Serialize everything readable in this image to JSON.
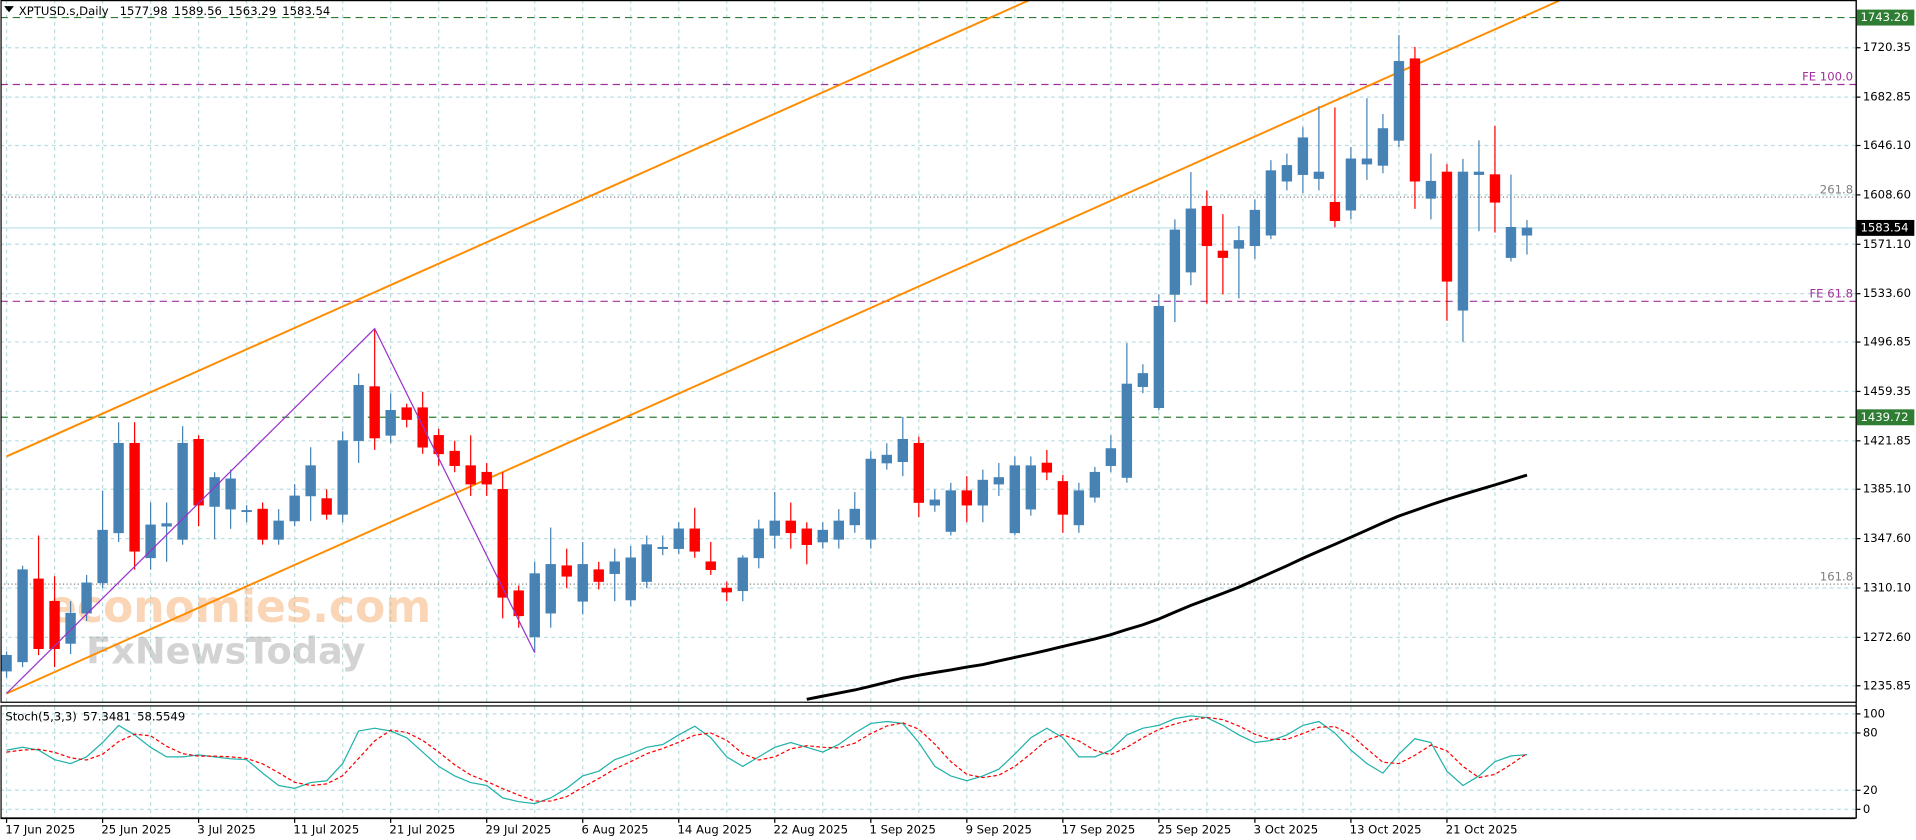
{
  "chart_data": [
    {
      "type": "candlestick",
      "symbol": "XPTUSD.s,Daily",
      "categories": [
        "17 Jun 2025",
        null,
        null,
        null,
        null,
        null,
        "25 Jun 2025",
        null,
        null,
        null,
        null,
        null,
        "3 Jul 2025",
        null,
        null,
        null,
        null,
        null,
        "11 Jul 2025",
        null,
        null,
        null,
        null,
        null,
        "21 Jul 2025",
        null,
        null,
        null,
        null,
        null,
        "29 Jul 2025",
        null,
        null,
        null,
        null,
        null,
        "6 Aug 2025",
        null,
        null,
        null,
        null,
        null,
        "14 Aug 2025",
        null,
        null,
        null,
        null,
        null,
        "22 Aug 2025",
        null,
        null,
        null,
        null,
        null,
        "1 Sep 2025",
        null,
        null,
        null,
        null,
        null,
        "9 Sep 2025",
        null,
        null,
        null,
        null,
        null,
        "17 Sep 2025",
        null,
        null,
        null,
        null,
        null,
        "25 Sep 2025",
        null,
        null,
        null,
        null,
        null,
        "3 Oct 2025",
        null,
        null,
        null,
        null,
        null,
        "13 Oct 2025",
        null,
        null,
        null,
        null,
        null,
        "21 Oct 2025",
        null,
        null,
        null,
        null,
        null
      ],
      "open": [
        1247,
        1254,
        1317,
        1300,
        1268,
        1291,
        1314,
        1352,
        1420,
        1333,
        1357,
        1347,
        1423,
        1372,
        1370,
        1368,
        1370,
        1347,
        1361,
        1380,
        1378,
        1366,
        1422,
        1463,
        1426,
        1447,
        1447,
        1426,
        1414,
        1403,
        1398,
        1385,
        1308,
        1273,
        1291,
        1327,
        1300,
        1324,
        1321,
        1301,
        1315,
        1340,
        1340,
        1355,
        1330,
        1310,
        1308,
        1333,
        1350,
        1361,
        1355,
        1345,
        1347,
        1358,
        1347,
        1405,
        1406,
        1420,
        1373,
        1353,
        1384,
        1373,
        1389,
        1352,
        1370,
        1405,
        1391,
        1358,
        1379,
        1403,
        1394,
        1463,
        1447,
        1533,
        1550,
        1600,
        1566,
        1568,
        1570,
        1578,
        1619,
        1624,
        1621,
        1603,
        1597,
        1632,
        1631,
        1650,
        1712,
        1606,
        1626,
        1521,
        1624,
        1624,
        1561,
        1577.98
      ],
      "high": [
        1262,
        1327,
        1350,
        1319,
        1300,
        1320,
        1384,
        1436,
        1436,
        1375,
        1375,
        1433,
        1426,
        1398,
        1400,
        1373,
        1375,
        1370,
        1389,
        1417,
        1385,
        1429,
        1473,
        1507,
        1458,
        1450,
        1459,
        1431,
        1422,
        1426,
        1405,
        1398,
        1312,
        1330,
        1356,
        1340,
        1345,
        1330,
        1340,
        1342,
        1350,
        1350,
        1360,
        1371,
        1345,
        1315,
        1335,
        1362,
        1383,
        1375,
        1360,
        1360,
        1370,
        1383,
        1414,
        1420,
        1440,
        1425,
        1385,
        1390,
        1395,
        1400,
        1405,
        1410,
        1410,
        1415,
        1396,
        1390,
        1402,
        1426,
        1496,
        1480,
        1533,
        1590,
        1626,
        1612,
        1594,
        1585,
        1605,
        1635,
        1640,
        1660,
        1676,
        1675,
        1645,
        1682,
        1670,
        1730,
        1721,
        1640,
        1632,
        1636,
        1650,
        1661,
        1624,
        1589.56
      ],
      "low": [
        1242,
        1250,
        1259,
        1250,
        1260,
        1285,
        1310,
        1345,
        1324,
        1324,
        1330,
        1343,
        1357,
        1347,
        1355,
        1360,
        1343,
        1343,
        1357,
        1361,
        1362,
        1360,
        1405,
        1415,
        1420,
        1432,
        1412,
        1403,
        1398,
        1380,
        1380,
        1287,
        1280,
        1261,
        1280,
        1310,
        1290,
        1309,
        1300,
        1296,
        1310,
        1335,
        1336,
        1333,
        1320,
        1300,
        1300,
        1325,
        1340,
        1340,
        1328,
        1340,
        1340,
        1352,
        1340,
        1400,
        1395,
        1364,
        1368,
        1350,
        1360,
        1360,
        1380,
        1350,
        1365,
        1392,
        1352,
        1352,
        1375,
        1398,
        1390,
        1458,
        1445,
        1512,
        1540,
        1526,
        1533,
        1530,
        1560,
        1575,
        1612,
        1610,
        1612,
        1584,
        1590,
        1620,
        1625,
        1645,
        1598,
        1590,
        1513,
        1497,
        1581,
        1580,
        1558,
        1563.29
      ],
      "close": [
        1259,
        1324,
        1264,
        1264,
        1291,
        1314,
        1354,
        1420,
        1338,
        1358,
        1359,
        1420,
        1373,
        1394,
        1393,
        1369,
        1347,
        1361,
        1380,
        1403,
        1366,
        1422,
        1464,
        1424,
        1445,
        1438,
        1417,
        1412,
        1403,
        1389,
        1389,
        1303,
        1289,
        1321,
        1328,
        1319,
        1328,
        1315,
        1330,
        1333,
        1343,
        1341,
        1355,
        1338,
        1324,
        1307,
        1333,
        1355,
        1361,
        1352,
        1343,
        1354,
        1361,
        1370,
        1408,
        1411,
        1423,
        1375,
        1377,
        1384,
        1373,
        1392,
        1394,
        1403,
        1403,
        1398,
        1366,
        1384,
        1398,
        1416,
        1465,
        1473,
        1524,
        1582,
        1598,
        1570,
        1561,
        1574,
        1597,
        1627,
        1631,
        1652,
        1626,
        1589,
        1636,
        1636,
        1659,
        1710,
        1619,
        1619,
        1543,
        1626,
        1626,
        1603,
        1584,
        1583.54
      ],
      "up_color": "#4682b4",
      "down_color": "#ff0000",
      "ylim": [
        1223.8,
        1756.6
      ],
      "yticks": [
        1235.85,
        {
          "value": 1272.6,
          "label": "1272.60"
        },
        {
          "value": 1310.1,
          "label": "1310.10"
        },
        {
          "value": 1347.6,
          "label": "1347.60"
        },
        {
          "value": 1385.1,
          "label": "1385.10"
        },
        1421.85,
        1459.35,
        1496.85,
        {
          "value": 1533.6,
          "label": "1533.60"
        },
        {
          "value": 1571.1,
          "label": "1571.10"
        },
        {
          "value": 1608.6,
          "label": "1608.60"
        },
        {
          "value": 1646.1,
          "label": "1646.10"
        },
        1682.85,
        1720.35
      ],
      "grid": true,
      "ma": {
        "color": "#000000",
        "values": [
          null,
          null,
          null,
          null,
          null,
          null,
          null,
          null,
          null,
          null,
          null,
          null,
          null,
          null,
          null,
          null,
          null,
          null,
          null,
          null,
          null,
          null,
          null,
          null,
          null,
          null,
          null,
          null,
          null,
          null,
          null,
          null,
          null,
          null,
          null,
          null,
          null,
          null,
          null,
          null,
          null,
          null,
          null,
          null,
          null,
          null,
          null,
          null,
          null,
          null,
          1225.6,
          1228.0,
          1230.3,
          1232.6,
          1235.5,
          1238.6,
          1241.6,
          1243.9,
          1245.9,
          1247.9,
          1250.0,
          1252.0,
          1254.7,
          1257.4,
          1260.0,
          1262.8,
          1265.7,
          1268.5,
          1271.4,
          1274.7,
          1278.6,
          1282.2,
          1286.6,
          1291.8,
          1296.9,
          1301.4,
          1306.0,
          1310.7,
          1316.1,
          1321.5,
          1326.9,
          1332.7,
          1338.0,
          1343.3,
          1348.7,
          1354.1,
          1359.6,
          1364.8,
          1369.0,
          1373.3,
          1377.4,
          1381.1,
          1384.8,
          1388.4,
          1392.1,
          1395.8
        ]
      },
      "channel": [
        {
          "color": "#ff8c00",
          "points": [
            [
              0,
              1410
            ],
            [
              64,
              1757
            ]
          ]
        },
        {
          "color": "#ff8c00",
          "points": [
            [
              0,
              1230
            ],
            [
              97,
              1756
            ]
          ]
        }
      ],
      "zigzag": {
        "color": "#9932cc",
        "points": [
          [
            0,
            1230
          ],
          [
            23,
            1507
          ],
          [
            33,
            1261
          ]
        ]
      },
      "levels": [
        {
          "value": 1743.26,
          "color": "#2e7d32",
          "style": "dash"
        },
        {
          "value": 1692.4,
          "label": "FE 100.0",
          "color": "#a0309a",
          "style": "dash"
        },
        {
          "value": 1606.9,
          "label": "261.8",
          "color": "#808080",
          "style": "dot"
        },
        {
          "value": 1527.8,
          "label": "FE 61.8",
          "color": "#a0309a",
          "style": "dash"
        },
        {
          "value": 1439.72,
          "color": "#2e7d32",
          "style": "dash"
        },
        {
          "value": 1313.0,
          "label": "161.8",
          "color": "#808080",
          "style": "dot"
        }
      ],
      "watermark": [
        "economies.com",
        "FxNewsToday"
      ]
    },
    {
      "type": "stochastic",
      "name": "Stoch(5,3,3)",
      "ylim": [
        -9,
        107.7
      ],
      "yticks": [
        0,
        20,
        80,
        100
      ],
      "grid": true,
      "main": {
        "color": "#20b2aa",
        "values": [
          62,
          65,
          62,
          52,
          48,
          55,
          70,
          88,
          78,
          65,
          55,
          55,
          57,
          55,
          53,
          52,
          38,
          25,
          22,
          28,
          30,
          48,
          82,
          85,
          82,
          75,
          60,
          45,
          35,
          28,
          25,
          12,
          8,
          6,
          12,
          22,
          35,
          40,
          52,
          58,
          65,
          68,
          78,
          87,
          75,
          55,
          45,
          55,
          65,
          70,
          65,
          60,
          68,
          80,
          90,
          92,
          90,
          70,
          45,
          35,
          30,
          35,
          42,
          58,
          75,
          85,
          75,
          55,
          55,
          62,
          78,
          85,
          88,
          95,
          98,
          96,
          88,
          78,
          70,
          72,
          78,
          88,
          92,
          80,
          62,
          48,
          38,
          58,
          74,
          70,
          40,
          25,
          35,
          50,
          56,
          57.3481
        ]
      },
      "signal": {
        "color": "#ff0000",
        "values": [
          60,
          62,
          63,
          59.7,
          54,
          51.7,
          57.7,
          71,
          78.7,
          77,
          66,
          58.3,
          55.7,
          55.7,
          55,
          53.3,
          47.7,
          38.3,
          28.3,
          25,
          26.7,
          35.3,
          53.3,
          71.7,
          83,
          80.7,
          72.3,
          60,
          46.7,
          36,
          29.3,
          21.7,
          15,
          8.7,
          8.7,
          13.3,
          23,
          32.3,
          42.3,
          50,
          58.3,
          63.7,
          70.3,
          77.7,
          80,
          72.3,
          58.3,
          51.7,
          55,
          63.3,
          66.7,
          65,
          64.3,
          69.3,
          79.3,
          87.3,
          90.7,
          84,
          68.3,
          50,
          36.7,
          33.3,
          35.7,
          45,
          58.3,
          72.7,
          78.3,
          71.7,
          61.7,
          57.3,
          65,
          75,
          83.7,
          89.3,
          93.7,
          96.3,
          94,
          87.3,
          78.7,
          73.3,
          73.3,
          79.3,
          86,
          86.7,
          78,
          63.3,
          49.3,
          48,
          56.7,
          67.3,
          61.3,
          45,
          33.3,
          36.7,
          47,
          58.5549
        ]
      }
    }
  ]
}
